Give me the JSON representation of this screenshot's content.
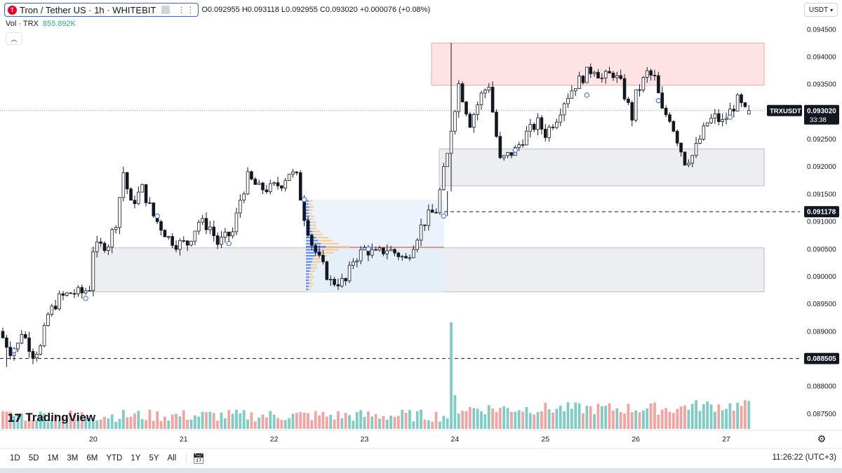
{
  "header": {
    "symbol_title": "Tron / Tether US · 1h · WHITEBIT",
    "ohlc": "O0.092955 H0.093118 L0.092955 C0.093020 +0.000076 (+0.08%)",
    "vol_label": "Vol · TRX",
    "vol_value": "855.892K",
    "collapse_icon": "chevron-up-icon",
    "currency": "USDT",
    "currency_icon": "chevron-down-icon"
  },
  "brand": {
    "mark": "17",
    "text": "TradingView"
  },
  "bottom_bar": {
    "ranges": [
      "1D",
      "5D",
      "1M",
      "3M",
      "6M",
      "YTD",
      "1Y",
      "5Y",
      "All"
    ],
    "calendar_icon": "calendar-icon",
    "clock": "11:26:22 (UTC+3)",
    "settings_icon": "gear-icon"
  },
  "colors": {
    "up": "#26a69a",
    "down": "#ef5350",
    "up_volume": "#7fccc6",
    "down_volume": "#f4a3a1",
    "resistance_zone": "#fde3e3",
    "support_zone": "#eceef2",
    "volume_profile": "#2962ff"
  },
  "chart_data": {
    "type": "candlestick",
    "interval": "1h",
    "ylim": [
      0.08725,
      0.09465
    ],
    "y_ticks": [
      "0.094500",
      "0.094000",
      "0.093500",
      "0.093000",
      "0.092500",
      "0.092000",
      "0.091500",
      "0.091000",
      "0.090500",
      "0.090000",
      "0.089500",
      "0.089000",
      "0.088500",
      "0.088000",
      "0.087500"
    ],
    "x_ticks": [
      {
        "label": "20",
        "t": 24
      },
      {
        "label": "21",
        "t": 48
      },
      {
        "label": "22",
        "t": 72
      },
      {
        "label": "23",
        "t": 96
      },
      {
        "label": "24",
        "t": 120
      },
      {
        "label": "25",
        "t": 144
      },
      {
        "label": "26",
        "t": 168
      },
      {
        "label": "27",
        "t": 192
      }
    ],
    "series_anchors": [
      [
        0,
        0.089
      ],
      [
        3,
        0.08865
      ],
      [
        5,
        0.08875
      ],
      [
        6,
        0.089
      ],
      [
        9,
        0.0886
      ],
      [
        11,
        0.0887
      ],
      [
        13,
        0.0893
      ],
      [
        16,
        0.0896
      ],
      [
        19,
        0.0897
      ],
      [
        22,
        0.0897
      ],
      [
        24,
        0.0898
      ],
      [
        25,
        0.0905
      ],
      [
        29,
        0.0906
      ],
      [
        31,
        0.091
      ],
      [
        33,
        0.0919
      ],
      [
        35,
        0.0913
      ],
      [
        38,
        0.0916
      ],
      [
        41,
        0.0911
      ],
      [
        45,
        0.0907
      ],
      [
        47,
        0.0906
      ],
      [
        50,
        0.0906
      ],
      [
        53,
        0.091
      ],
      [
        56,
        0.0909
      ],
      [
        58,
        0.0906
      ],
      [
        62,
        0.0908
      ],
      [
        64,
        0.0914
      ],
      [
        66,
        0.0918
      ],
      [
        69,
        0.0916
      ],
      [
        72,
        0.0916
      ],
      [
        75,
        0.0917
      ],
      [
        77,
        0.0919
      ],
      [
        79,
        0.0918
      ],
      [
        81,
        0.0911
      ],
      [
        83,
        0.0906
      ],
      [
        85,
        0.0903
      ],
      [
        88,
        0.0899
      ],
      [
        92,
        0.0899
      ],
      [
        94,
        0.0903
      ],
      [
        97,
        0.0905
      ],
      [
        100,
        0.0904
      ],
      [
        103,
        0.0905
      ],
      [
        106,
        0.0904
      ],
      [
        108,
        0.0903
      ],
      [
        110,
        0.0906
      ],
      [
        112,
        0.0909
      ],
      [
        114,
        0.0911
      ],
      [
        116,
        0.0912
      ],
      [
        118,
        0.0919
      ],
      [
        119,
        0.0922
      ],
      [
        120,
        0.0927
      ],
      [
        122,
        0.0935
      ],
      [
        125,
        0.0928
      ],
      [
        128,
        0.0933
      ],
      [
        130,
        0.0935
      ],
      [
        131,
        0.093
      ],
      [
        133,
        0.0921
      ],
      [
        135,
        0.0922
      ],
      [
        137,
        0.0923
      ],
      [
        140,
        0.0926
      ],
      [
        143,
        0.0928
      ],
      [
        145,
        0.0926
      ],
      [
        148,
        0.0929
      ],
      [
        150,
        0.0932
      ],
      [
        153,
        0.0935
      ],
      [
        156,
        0.0937
      ],
      [
        158,
        0.0938
      ],
      [
        160,
        0.0936
      ],
      [
        163,
        0.0937
      ],
      [
        165,
        0.0935
      ],
      [
        166,
        0.0933
      ],
      [
        168,
        0.0929
      ],
      [
        169,
        0.0933
      ],
      [
        172,
        0.0937
      ],
      [
        174,
        0.0936
      ],
      [
        176,
        0.093
      ],
      [
        178,
        0.0929
      ],
      [
        180,
        0.0925
      ],
      [
        182,
        0.0921
      ],
      [
        184,
        0.0922
      ],
      [
        186,
        0.0925
      ],
      [
        188,
        0.0928
      ],
      [
        190,
        0.0929
      ],
      [
        192,
        0.0928
      ],
      [
        194,
        0.093
      ],
      [
        196,
        0.0932
      ],
      [
        198,
        0.093
      ]
    ],
    "last_candle_index": 198,
    "annotations": {
      "resistance_zone": [
        0.09348,
        0.09425
      ],
      "support_zone_upper": [
        0.09165,
        0.09232
      ],
      "support_zone_lower": [
        0.08972,
        0.09052
      ],
      "level_1": {
        "price": 0.091178,
        "label": "0.091178"
      },
      "level_2": {
        "price": 0.088505,
        "label": "0.088505"
      },
      "current_price": {
        "price": 0.09302,
        "label": "0.093020",
        "ticker": "TRXUSDT",
        "countdown": "33:38"
      },
      "poc_price": 0.09053
    }
  }
}
